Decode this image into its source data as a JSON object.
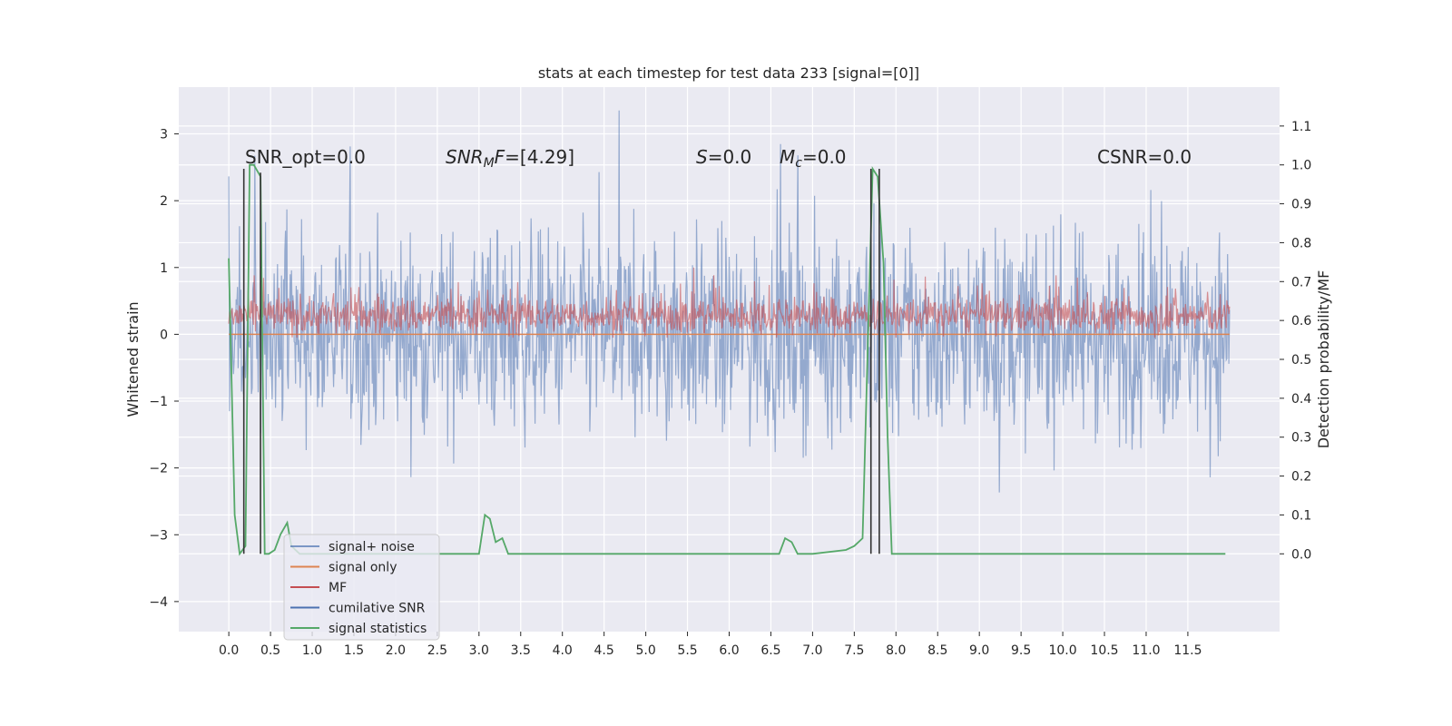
{
  "chart_data": {
    "type": "line",
    "title": "stats at each timestep for test data 233 [signal=[0]]",
    "xlabel": "",
    "ylabel": "Whitened strain",
    "ylabel_right": "Detection probability/MF",
    "xlim": [
      -0.6,
      12.6
    ],
    "ylim": [
      -4.45,
      3.7
    ],
    "ylim_right": [
      -0.2,
      1.2
    ],
    "x_ticks": [
      "0.0",
      "0.5",
      "1.0",
      "1.5",
      "2.0",
      "2.5",
      "3.0",
      "3.5",
      "4.0",
      "4.5",
      "5.0",
      "5.5",
      "6.0",
      "6.5",
      "7.0",
      "7.5",
      "8.0",
      "8.5",
      "9.0",
      "9.5",
      "10.0",
      "10.5",
      "11.0",
      "11.5"
    ],
    "y_ticks": [
      "3",
      "2",
      "1",
      "0",
      "−1",
      "−2",
      "−3",
      "−4"
    ],
    "y_ticks_right": [
      "1.1",
      "1.0",
      "0.9",
      "0.8",
      "0.7",
      "0.6",
      "0.5",
      "0.4",
      "0.3",
      "0.2",
      "0.1",
      "0.0"
    ],
    "grid": true,
    "legend_placement": "lower-left",
    "annotations": {
      "snr_opt": "SNR_opt=0.0",
      "snr_mf_label": "SNR",
      "snr_mf_sub": "M",
      "snr_mf_rest": "F",
      "snr_mf_value": "=[4.29]",
      "s_label": "S",
      "s_value": "=0.0",
      "mc_label": "M",
      "mc_sub": "c",
      "mc_value": "=0.0",
      "csnr": "CSNR=0.0"
    },
    "series": [
      {
        "name": "signal+ noise",
        "color": "#4c72b0",
        "style": "noise band ≈ ±1.4, peaks to ≈ ±3.3",
        "x_range": [
          0.0,
          12.0
        ]
      },
      {
        "name": "signal only",
        "color": "#dd8452",
        "values_note": "flat at ≈ 0",
        "x_range": [
          0.0,
          12.0
        ]
      },
      {
        "name": "MF",
        "color": "#c44e52",
        "style": "band ≈ 0.0 to 0.6, peaks ≈ 1.0",
        "x_range": [
          0.0,
          12.0
        ]
      },
      {
        "name": "cumilative SNR",
        "color": "#4c72b0",
        "values_note": "not visible",
        "x_range": [
          0.0,
          12.0
        ]
      },
      {
        "name": "signal statistics",
        "color": "#55a868",
        "axis": "right",
        "x": [
          0.0,
          0.07,
          0.13,
          0.2,
          0.25,
          0.3,
          0.38,
          0.43,
          0.48,
          0.55,
          0.62,
          0.7,
          0.75,
          0.85,
          1.0,
          1.5,
          2.0,
          2.5,
          2.9,
          3.0,
          3.07,
          3.13,
          3.2,
          3.28,
          3.35,
          3.5,
          4.0,
          5.0,
          6.0,
          6.5,
          6.6,
          6.67,
          6.75,
          6.82,
          7.0,
          7.4,
          7.5,
          7.6,
          7.67,
          7.72,
          7.78,
          7.85,
          7.9,
          7.95,
          8.0,
          8.5,
          9.0,
          9.5,
          10.0,
          10.5,
          11.0,
          11.5,
          11.95
        ],
        "y": [
          0.76,
          0.1,
          0.0,
          0.02,
          1.0,
          1.0,
          0.97,
          0.0,
          0.0,
          0.01,
          0.05,
          0.08,
          0.02,
          0.0,
          0.0,
          0.0,
          0.0,
          0.0,
          0.0,
          0.0,
          0.1,
          0.09,
          0.03,
          0.04,
          0.0,
          0.0,
          0.0,
          0.0,
          0.0,
          0.0,
          0.0,
          0.04,
          0.03,
          0.0,
          0.0,
          0.01,
          0.02,
          0.04,
          0.6,
          0.99,
          0.97,
          0.75,
          0.3,
          0.0,
          0.0,
          0.0,
          0.0,
          0.0,
          0.0,
          0.0,
          0.0,
          0.0,
          0.0
        ]
      },
      {
        "name": "",
        "color": "#333333",
        "axis": "right",
        "style": "vertical marker lines",
        "x": [
          0.18,
          0.38,
          7.7,
          7.8
        ],
        "y_top": [
          0.99,
          0.98,
          0.99,
          0.99
        ],
        "y_bottom": [
          0.0,
          0.0,
          0.0,
          0.0
        ]
      }
    ]
  }
}
